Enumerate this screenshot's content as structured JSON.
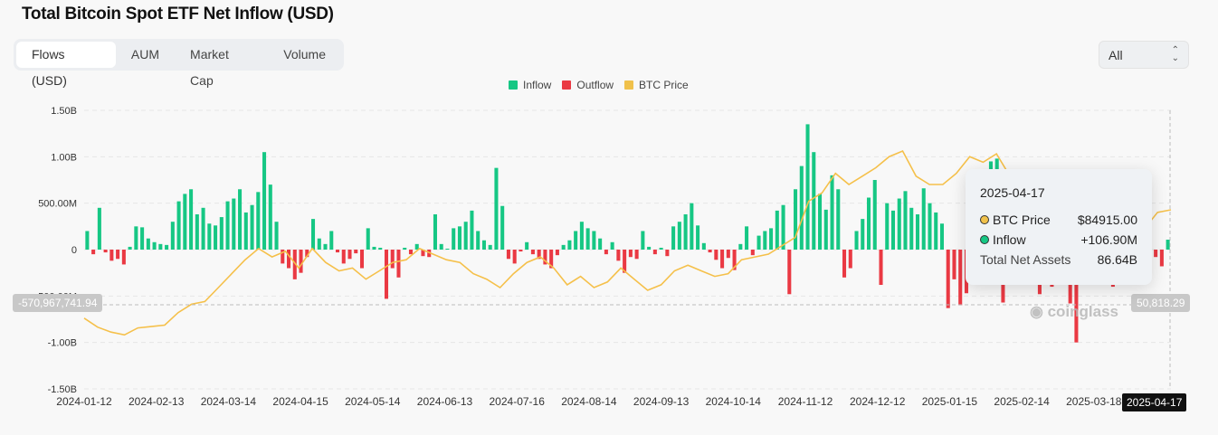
{
  "title": "Total Bitcoin Spot ETF Net Inflow (USD)",
  "tabs": [
    "Flows (USD)",
    "AUM",
    "Market Cap",
    "Volume"
  ],
  "range_select": "All",
  "legend": [
    {
      "label": "Inflow",
      "color": "#16c784"
    },
    {
      "label": "Outflow",
      "color": "#ea3943"
    },
    {
      "label": "BTC Price",
      "color": "#f0b90b"
    }
  ],
  "crosshair": {
    "left_value": "-570,967,741.94",
    "right_value": "50,818.29",
    "date": "2025-04-17"
  },
  "watermark": "coinglass",
  "tooltip": {
    "date": "2025-04-17",
    "price_label": "BTC Price",
    "price_value": "$84915.00",
    "inflow_label": "Inflow",
    "inflow_value": "+106.90M",
    "assets_label": "Total Net Assets",
    "assets_value": "86.64B"
  },
  "chart_data": {
    "type": "bar",
    "title": "Total Bitcoin Spot ETF Net Inflow (USD)",
    "y_ticks": [
      "1.50B",
      "1.00B",
      "500.00M",
      "0",
      "-500.00M",
      "-1.00B",
      "-1.50B"
    ],
    "ylim_millions": [
      -1500,
      1500
    ],
    "x_ticks": [
      "2024-01-12",
      "2024-02-13",
      "2024-03-14",
      "2024-04-15",
      "2024-05-14",
      "2024-06-13",
      "2024-07-16",
      "2024-08-14",
      "2024-09-13",
      "2024-10-14",
      "2024-11-12",
      "2024-12-12",
      "2025-01-15",
      "2025-02-14",
      "2025-03-18"
    ],
    "flows_millions": [
      200,
      -50,
      450,
      -30,
      -120,
      -100,
      -160,
      30,
      250,
      240,
      120,
      80,
      60,
      50,
      300,
      520,
      600,
      650,
      380,
      450,
      280,
      260,
      350,
      520,
      550,
      650,
      400,
      480,
      620,
      1050,
      700,
      300,
      -150,
      -200,
      -320,
      -250,
      -80,
      330,
      120,
      60,
      200,
      -30,
      -150,
      -100,
      -40,
      -200,
      230,
      30,
      20,
      -530,
      -200,
      -300,
      20,
      -50,
      60,
      -70,
      -80,
      380,
      60,
      10,
      230,
      250,
      300,
      420,
      200,
      100,
      50,
      880,
      470,
      -100,
      -150,
      -20,
      80,
      -50,
      -100,
      -160,
      -200,
      -60,
      50,
      100,
      200,
      300,
      230,
      200,
      120,
      -50,
      80,
      -120,
      -250,
      -80,
      -100,
      200,
      30,
      -50,
      20,
      -70,
      250,
      300,
      380,
      500,
      260,
      70,
      -30,
      -110,
      -200,
      -90,
      -220,
      60,
      250,
      -60,
      150,
      200,
      230,
      420,
      480,
      -480,
      650,
      900,
      1350,
      1050,
      600,
      430,
      800,
      650,
      -300,
      -200,
      200,
      330,
      560,
      750,
      -380,
      500,
      420,
      550,
      630,
      450,
      380,
      660,
      500,
      400,
      280,
      -630,
      -320,
      -600,
      -470,
      -180,
      -300,
      480,
      950,
      980,
      -570,
      750,
      500,
      600,
      830,
      -220,
      -480,
      -300,
      -400,
      -100,
      -200,
      -580,
      -1000,
      -320,
      -250,
      -100,
      -370,
      -180,
      -400,
      -60,
      -200,
      -150,
      -300,
      -100,
      -250,
      -80,
      -180,
      107
    ],
    "price_usd": [
      46000,
      42800,
      41000,
      40000,
      42500,
      43000,
      43500,
      48000,
      51000,
      52000,
      57000,
      62000,
      67000,
      71000,
      68000,
      70000,
      64000,
      71000,
      66000,
      63000,
      64000,
      60000,
      63000,
      66000,
      67000,
      71000,
      69000,
      67000,
      66000,
      62000,
      60000,
      57000,
      62000,
      66000,
      68000,
      64000,
      58000,
      61000,
      57000,
      59000,
      64000,
      60000,
      56000,
      58000,
      63000,
      65000,
      63000,
      61000,
      62000,
      67000,
      68000,
      69000,
      72000,
      75000,
      88000,
      91000,
      98000,
      94000,
      97000,
      100000,
      104000,
      106000,
      97000,
      94000,
      94000,
      98000,
      104000,
      102000,
      105000,
      97000,
      98000,
      96000,
      85000,
      82000,
      90000,
      84000,
      82000,
      87000,
      84000,
      78000,
      84000,
      84915
    ]
  }
}
